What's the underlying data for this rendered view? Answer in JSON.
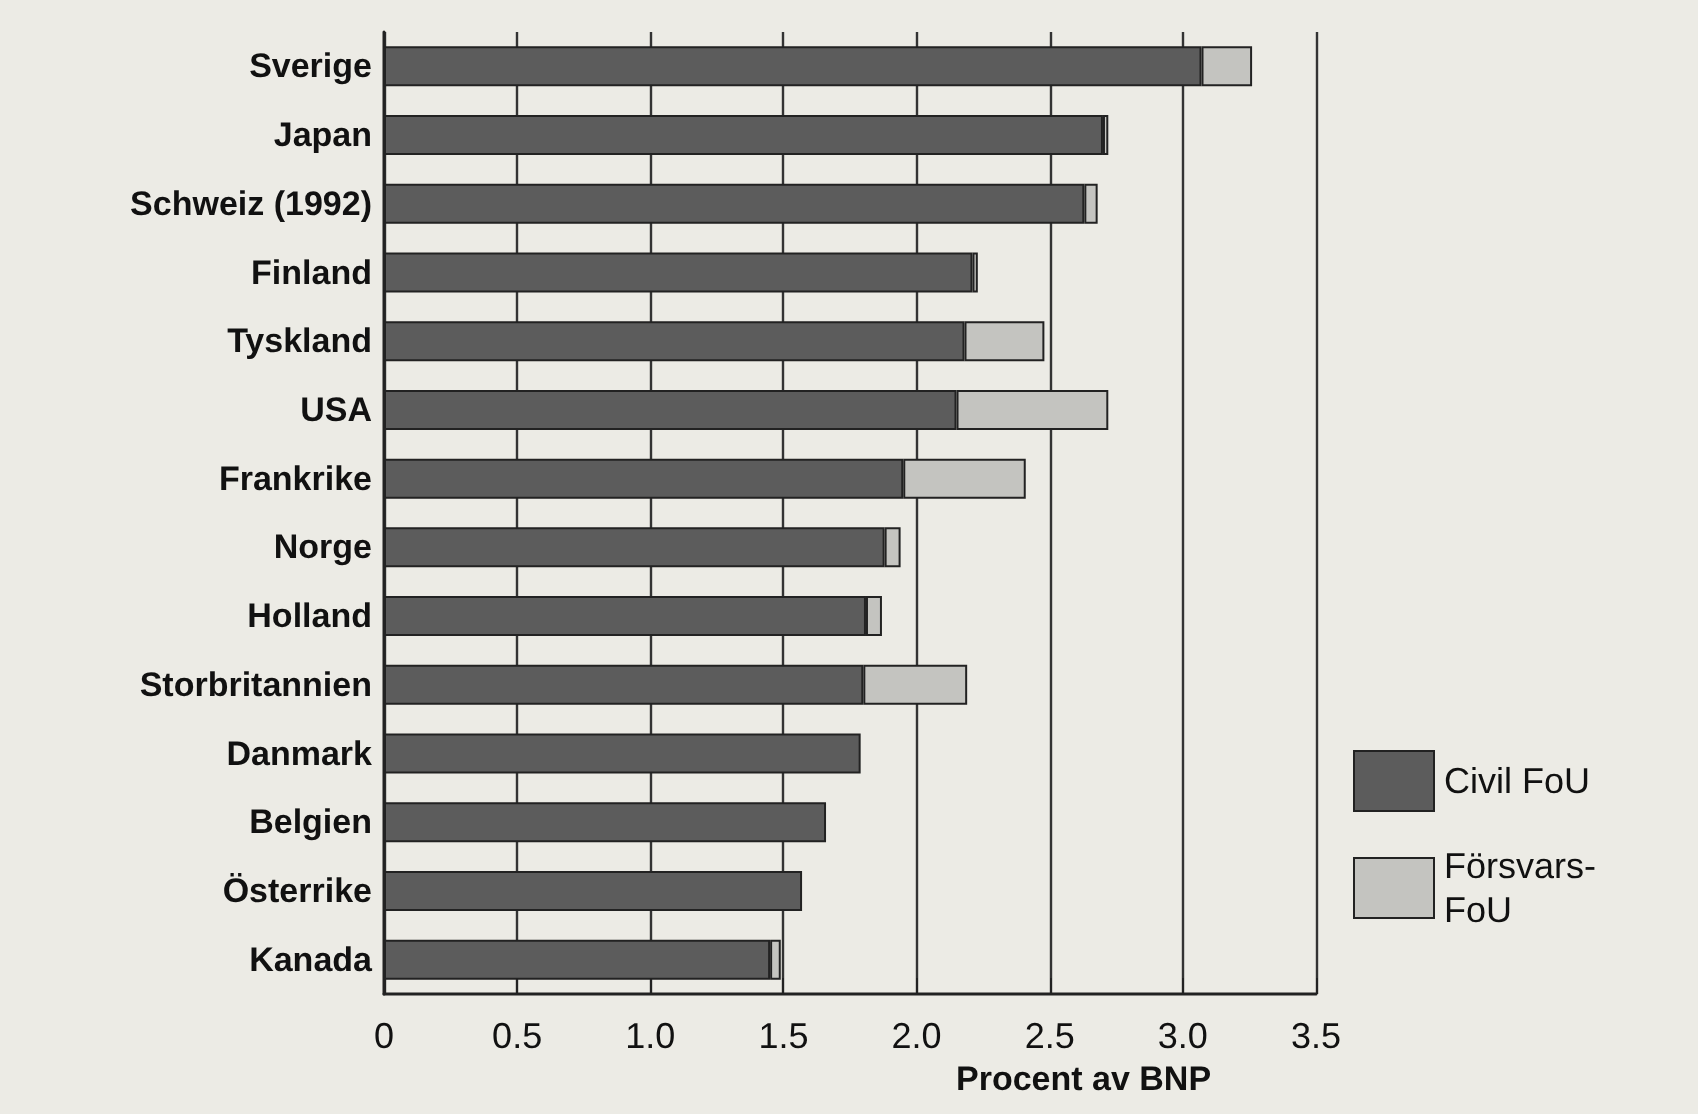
{
  "chart_data": {
    "type": "bar",
    "orientation": "horizontal",
    "stacked": true,
    "xlabel": "Procent av BNP",
    "categories": [
      "Sverige",
      "Japan",
      "Schweiz (1992)",
      "Finland",
      "Tyskland",
      "USA",
      "Frankrike",
      "Norge",
      "Holland",
      "Storbritannien",
      "Danmark",
      "Belgien",
      "Österrike",
      "Kanada"
    ],
    "series": [
      {
        "name": "Civil FoU",
        "color": "#5c5c5c",
        "values": [
          3.07,
          2.7,
          2.63,
          2.21,
          2.18,
          2.15,
          1.95,
          1.88,
          1.81,
          1.8,
          1.79,
          1.66,
          1.57,
          1.45
        ]
      },
      {
        "name": "Försvars-FoU",
        "color": "#c4c4c0",
        "values": [
          0.19,
          0.02,
          0.05,
          0.02,
          0.3,
          0.57,
          0.46,
          0.06,
          0.06,
          0.39,
          0,
          0,
          0,
          0.04
        ]
      }
    ],
    "xlim": [
      0,
      3.5
    ],
    "xticks": [
      0,
      0.5,
      {
        "value": 1,
        "label": "1.0"
      },
      1.5,
      {
        "value": 2,
        "label": "2.0"
      },
      2.5,
      {
        "value": 3,
        "label": "3.0"
      },
      3.5
    ],
    "grid": "x",
    "legend": "right"
  }
}
